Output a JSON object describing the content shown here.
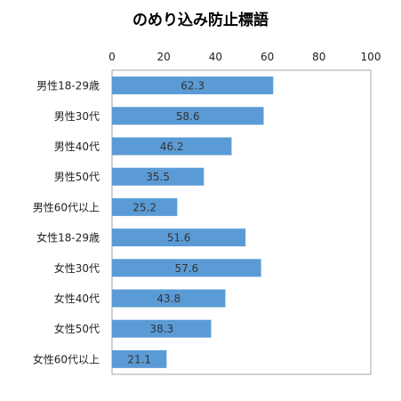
{
  "chart_data": {
    "type": "bar",
    "orientation": "horizontal",
    "title": "のめり込み防止標語",
    "categories": [
      "男性18-29歳",
      "男性30代",
      "男性40代",
      "男性50代",
      "男性60代以上",
      "女性18-29歳",
      "女性30代",
      "女性40代",
      "女性50代",
      "女性60代以上"
    ],
    "values": [
      62.3,
      58.6,
      46.2,
      35.5,
      25.2,
      51.6,
      57.6,
      43.8,
      38.3,
      21.1
    ],
    "xlim": [
      0,
      100
    ],
    "xticks": [
      0,
      20,
      40,
      60,
      80,
      100
    ],
    "xaxis_position": "top",
    "grid": false,
    "legend": "none",
    "bar_color": "#5B9BD5",
    "data_labels": true
  }
}
